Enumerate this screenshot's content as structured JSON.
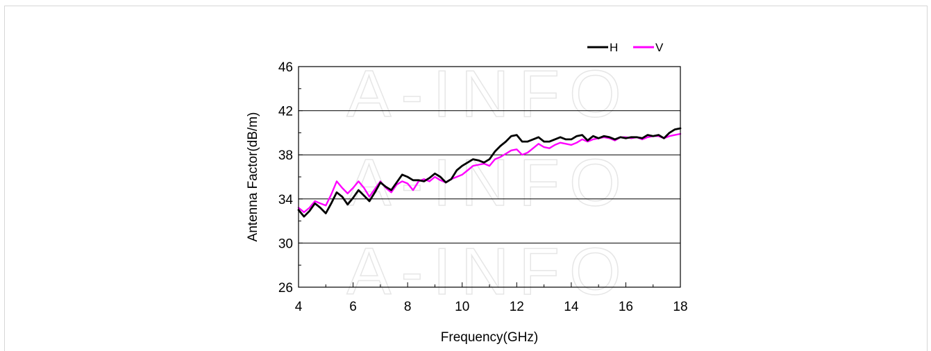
{
  "chart_data": {
    "type": "line",
    "xlabel": "Frequency(GHz)",
    "ylabel": "Antenna Factor(dB/m)",
    "xlim": [
      4,
      18
    ],
    "ylim": [
      26,
      46
    ],
    "xticks": [
      "4",
      "6",
      "8",
      "10",
      "12",
      "14",
      "16",
      "18"
    ],
    "yticks": [
      "26",
      "30",
      "34",
      "38",
      "42",
      "46"
    ],
    "grid": "horizontal major lines",
    "legend_position": "top-right",
    "watermark": "A-INFO",
    "series": [
      {
        "name": "H",
        "color": "#000000",
        "x": [
          4.0,
          4.2,
          4.4,
          4.6,
          4.8,
          5.0,
          5.2,
          5.4,
          5.6,
          5.8,
          6.0,
          6.2,
          6.4,
          6.6,
          6.8,
          7.0,
          7.2,
          7.4,
          7.6,
          7.8,
          8.0,
          8.2,
          8.4,
          8.6,
          8.8,
          9.0,
          9.2,
          9.4,
          9.6,
          9.8,
          10.0,
          10.2,
          10.4,
          10.6,
          10.8,
          11.0,
          11.2,
          11.4,
          11.6,
          11.8,
          12.0,
          12.2,
          12.4,
          12.6,
          12.8,
          13.0,
          13.2,
          13.4,
          13.6,
          13.8,
          14.0,
          14.2,
          14.4,
          14.6,
          14.8,
          15.0,
          15.2,
          15.4,
          15.6,
          15.8,
          16.0,
          16.2,
          16.4,
          16.6,
          16.8,
          17.0,
          17.2,
          17.4,
          17.6,
          17.8,
          18.0
        ],
        "values": [
          33.0,
          32.4,
          32.9,
          33.6,
          33.2,
          32.7,
          33.6,
          34.6,
          34.2,
          33.5,
          34.1,
          34.8,
          34.3,
          33.8,
          34.6,
          35.5,
          35.1,
          34.8,
          35.5,
          36.2,
          36.0,
          35.7,
          35.7,
          35.6,
          35.9,
          36.3,
          36.0,
          35.5,
          35.8,
          36.6,
          37.0,
          37.3,
          37.6,
          37.5,
          37.3,
          37.6,
          38.3,
          38.8,
          39.2,
          39.7,
          39.8,
          39.2,
          39.2,
          39.4,
          39.6,
          39.2,
          39.2,
          39.4,
          39.6,
          39.4,
          39.4,
          39.7,
          39.8,
          39.3,
          39.7,
          39.5,
          39.7,
          39.6,
          39.4,
          39.6,
          39.5,
          39.6,
          39.6,
          39.5,
          39.8,
          39.7,
          39.8,
          39.5,
          40.0,
          40.3,
          40.4
        ]
      },
      {
        "name": "V",
        "color": "#ff00ff",
        "x": [
          4.0,
          4.2,
          4.4,
          4.6,
          4.8,
          5.0,
          5.2,
          5.4,
          5.6,
          5.8,
          6.0,
          6.2,
          6.4,
          6.6,
          6.8,
          7.0,
          7.2,
          7.4,
          7.6,
          7.8,
          8.0,
          8.2,
          8.4,
          8.6,
          8.8,
          9.0,
          9.2,
          9.4,
          9.6,
          9.8,
          10.0,
          10.2,
          10.4,
          10.6,
          10.8,
          11.0,
          11.2,
          11.4,
          11.6,
          11.8,
          12.0,
          12.2,
          12.4,
          12.6,
          12.8,
          13.0,
          13.2,
          13.4,
          13.6,
          13.8,
          14.0,
          14.2,
          14.4,
          14.6,
          14.8,
          15.0,
          15.2,
          15.4,
          15.6,
          15.8,
          16.0,
          16.2,
          16.4,
          16.6,
          16.8,
          17.0,
          17.2,
          17.4,
          17.6,
          17.8,
          18.0
        ],
        "values": [
          33.2,
          32.8,
          33.2,
          33.8,
          33.6,
          33.4,
          34.4,
          35.6,
          35.0,
          34.5,
          35.0,
          35.6,
          35.0,
          34.2,
          34.9,
          35.6,
          35.0,
          34.6,
          35.3,
          35.6,
          35.4,
          34.8,
          35.6,
          35.8,
          35.6,
          36.0,
          35.7,
          35.5,
          35.8,
          36.0,
          36.2,
          36.6,
          37.0,
          37.1,
          37.2,
          37.0,
          37.6,
          37.8,
          38.1,
          38.4,
          38.5,
          38.0,
          38.2,
          38.6,
          39.0,
          38.7,
          38.6,
          38.9,
          39.1,
          39.0,
          38.9,
          39.1,
          39.4,
          39.2,
          39.4,
          39.5,
          39.6,
          39.5,
          39.3,
          39.6,
          39.6,
          39.5,
          39.6,
          39.4,
          39.6,
          39.7,
          39.7,
          39.5,
          39.7,
          39.8,
          39.9
        ]
      }
    ]
  }
}
